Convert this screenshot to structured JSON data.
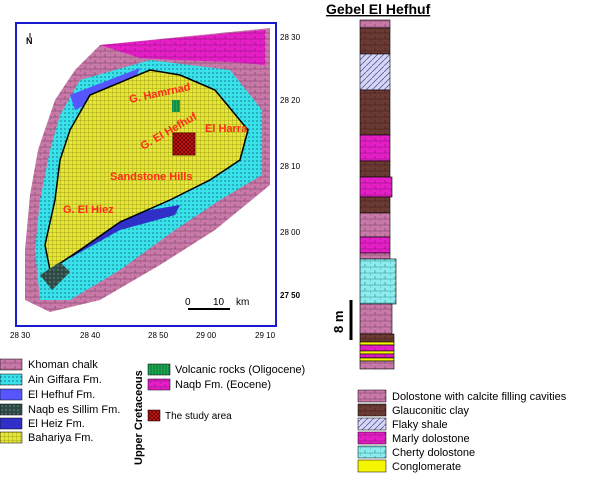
{
  "map": {
    "north_arrow": "N",
    "place_labels": [
      "G. Hamrnad",
      "G. El Hefhuf",
      "El Harra",
      "Sandstone Hills",
      "G. El Hiez"
    ],
    "scale_bar": {
      "start": "0",
      "mid": "10",
      "unit": "km"
    },
    "lat_labels": [
      "28 30",
      "28 20",
      "28 10",
      "28 00",
      "27 50"
    ],
    "lon_labels": [
      "28 30",
      "28 40",
      "28 50",
      "29 00",
      "29 10"
    ]
  },
  "map_legend": {
    "formations": [
      {
        "label": "Khoman chalk",
        "color": "#c879a8"
      },
      {
        "label": "Ain Giffara Fm.",
        "color": "#39e1e8"
      },
      {
        "label": "El Hefhuf Fm.",
        "color": "#5656ff"
      },
      {
        "label": "Naqb es Sillim Fm.",
        "color": "#2e4a44"
      },
      {
        "label": "El Heiz Fm.",
        "color": "#3030c8"
      },
      {
        "label": "Bahariya Fm.",
        "color": "#e6e638"
      }
    ],
    "upper_cretaceous_label": "Upper Cretaceous",
    "other_units": [
      {
        "label": "Volcanic rocks (Oligocene)",
        "color": "#1fa84a"
      },
      {
        "label": "Naqb Fm. (Eocene)",
        "color": "#e61ec8"
      }
    ],
    "study_area": {
      "label": "The study area",
      "color": "#c81414"
    }
  },
  "column": {
    "title": "Gebel El Hefhuf",
    "scale_label": "8 m",
    "units": [
      {
        "label": "Dolostone with calcite filling cavities",
        "color": "#c879a8"
      },
      {
        "label": "Glauconitic clay",
        "color": "#6b3a33"
      },
      {
        "label": "Flaky shale",
        "color": "#c8c8f0"
      },
      {
        "label": "Marly dolostone",
        "color": "#e61ec8"
      },
      {
        "label": "Cherty dolostone",
        "color": "#8cecee"
      },
      {
        "label": "Conglomerate",
        "color": "#f5f500"
      }
    ]
  }
}
